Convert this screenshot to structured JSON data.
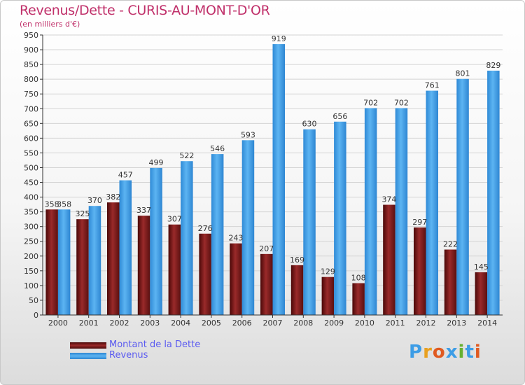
{
  "title": "Revenus/Dette - CURIS-AU-MONT-D'OR",
  "subtitle": "(en milliers d'€)",
  "logo_text": "Proxiti",
  "colors": {
    "title": "#c0306a",
    "debt_series": "#7a1a1a",
    "revenue_series": "#3d9de6",
    "legend_text": "#5a5af0",
    "grid": "#d4d4d4",
    "axis": "#333333"
  },
  "chart_data": {
    "type": "bar",
    "title": "Revenus/Dette - CURIS-AU-MONT-D'OR",
    "subtitle": "(en milliers d'€)",
    "xlabel": "",
    "ylabel": "",
    "ylim": [
      0,
      950
    ],
    "ytick_step": 50,
    "grid": true,
    "legend_position": "bottom-left",
    "categories": [
      "2000",
      "2001",
      "2002",
      "2003",
      "2004",
      "2005",
      "2006",
      "2007",
      "2008",
      "2009",
      "2010",
      "2011",
      "2012",
      "2013",
      "2014"
    ],
    "series": [
      {
        "name": "Montant de la Dette",
        "color": "#7a1a1a",
        "values": [
          358,
          325,
          382,
          337,
          307,
          276,
          243,
          207,
          169,
          129,
          108,
          374,
          297,
          222,
          145
        ]
      },
      {
        "name": "Revenus",
        "color": "#3d9de6",
        "values": [
          358,
          370,
          457,
          499,
          522,
          546,
          593,
          919,
          630,
          656,
          702,
          702,
          761,
          801,
          829
        ]
      }
    ]
  }
}
